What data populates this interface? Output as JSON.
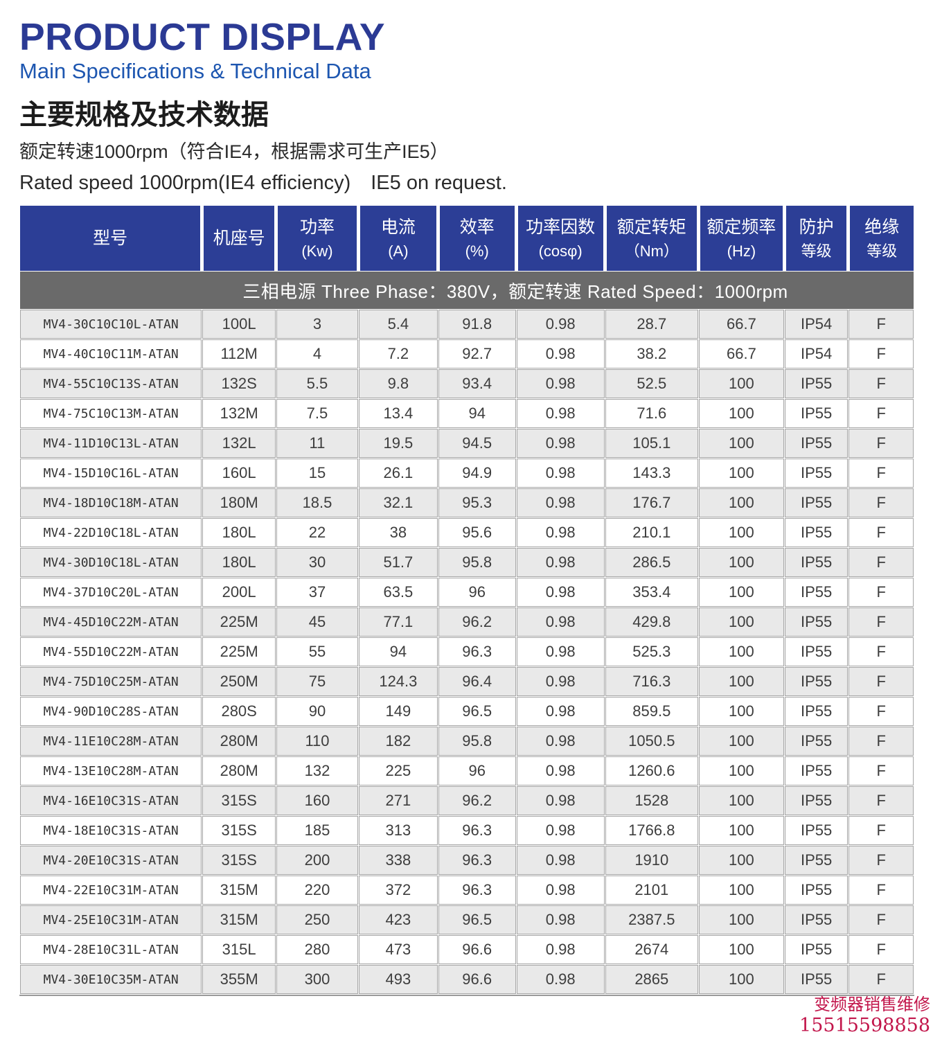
{
  "header": {
    "title": "PRODUCT DISPLAY",
    "subtitle": "Main Specifications & Technical Data",
    "heading_zh": "主要规格及技术数据",
    "rated_speed_zh": "额定转速1000rpm（符合IE4，根据需求可生产IE5）",
    "rated_speed_en": "Rated speed 1000rpm(IE4 efficiency)　IE5 on request."
  },
  "colors": {
    "title_blue": "#2b3a94",
    "subtitle_blue": "#1d56b0",
    "table_header_blue": "#2c3e96",
    "band_gray": "#6a6a6a",
    "row_stripe_gray": "#e9e9e9",
    "border_gray": "#a5a5a5",
    "watermark_red": "#c2164b"
  },
  "table": {
    "power_supply_banner": "三相电源 Three Phase：380V，额定转速 Rated Speed：1000rpm",
    "columns": [
      {
        "key": "model",
        "line1": "型号",
        "line2": ""
      },
      {
        "key": "frame-size",
        "line1": "机座号",
        "line2": ""
      },
      {
        "key": "power",
        "line1": "功率",
        "line2": "(Kw)"
      },
      {
        "key": "current",
        "line1": "电流",
        "line2": "(A)"
      },
      {
        "key": "efficiency",
        "line1": "效率",
        "line2": "(%)"
      },
      {
        "key": "power-factor",
        "line1": "功率因数",
        "line2": "(cosφ)"
      },
      {
        "key": "rated-torque",
        "line1": "额定转矩",
        "line2": "（Nm）"
      },
      {
        "key": "rated-frequency",
        "line1": "额定频率",
        "line2": "(Hz)"
      },
      {
        "key": "protection-class",
        "line1": "防护",
        "line2": "等级"
      },
      {
        "key": "insulation-class",
        "line1": "绝缘",
        "line2": "等级"
      }
    ],
    "rows": [
      [
        "MV4-30C10C10L-ATAN",
        "100L",
        "3",
        "5.4",
        "91.8",
        "0.98",
        "28.7",
        "66.7",
        "IP54",
        "F"
      ],
      [
        "MV4-40C10C11M-ATAN",
        "112M",
        "4",
        "7.2",
        "92.7",
        "0.98",
        "38.2",
        "66.7",
        "IP54",
        "F"
      ],
      [
        "MV4-55C10C13S-ATAN",
        "132S",
        "5.5",
        "9.8",
        "93.4",
        "0.98",
        "52.5",
        "100",
        "IP55",
        "F"
      ],
      [
        "MV4-75C10C13M-ATAN",
        "132M",
        "7.5",
        "13.4",
        "94",
        "0.98",
        "71.6",
        "100",
        "IP55",
        "F"
      ],
      [
        "MV4-11D10C13L-ATAN",
        "132L",
        "11",
        "19.5",
        "94.5",
        "0.98",
        "105.1",
        "100",
        "IP55",
        "F"
      ],
      [
        "MV4-15D10C16L-ATAN",
        "160L",
        "15",
        "26.1",
        "94.9",
        "0.98",
        "143.3",
        "100",
        "IP55",
        "F"
      ],
      [
        "MV4-18D10C18M-ATAN",
        "180M",
        "18.5",
        "32.1",
        "95.3",
        "0.98",
        "176.7",
        "100",
        "IP55",
        "F"
      ],
      [
        "MV4-22D10C18L-ATAN",
        "180L",
        "22",
        "38",
        "95.6",
        "0.98",
        "210.1",
        "100",
        "IP55",
        "F"
      ],
      [
        "MV4-30D10C18L-ATAN",
        "180L",
        "30",
        "51.7",
        "95.8",
        "0.98",
        "286.5",
        "100",
        "IP55",
        "F"
      ],
      [
        "MV4-37D10C20L-ATAN",
        "200L",
        "37",
        "63.5",
        "96",
        "0.98",
        "353.4",
        "100",
        "IP55",
        "F"
      ],
      [
        "MV4-45D10C22M-ATAN",
        "225M",
        "45",
        "77.1",
        "96.2",
        "0.98",
        "429.8",
        "100",
        "IP55",
        "F"
      ],
      [
        "MV4-55D10C22M-ATAN",
        "225M",
        "55",
        "94",
        "96.3",
        "0.98",
        "525.3",
        "100",
        "IP55",
        "F"
      ],
      [
        "MV4-75D10C25M-ATAN",
        "250M",
        "75",
        "124.3",
        "96.4",
        "0.98",
        "716.3",
        "100",
        "IP55",
        "F"
      ],
      [
        "MV4-90D10C28S-ATAN",
        "280S",
        "90",
        "149",
        "96.5",
        "0.98",
        "859.5",
        "100",
        "IP55",
        "F"
      ],
      [
        "MV4-11E10C28M-ATAN",
        "280M",
        "110",
        "182",
        "95.8",
        "0.98",
        "1050.5",
        "100",
        "IP55",
        "F"
      ],
      [
        "MV4-13E10C28M-ATAN",
        "280M",
        "132",
        "225",
        "96",
        "0.98",
        "1260.6",
        "100",
        "IP55",
        "F"
      ],
      [
        "MV4-16E10C31S-ATAN",
        "315S",
        "160",
        "271",
        "96.2",
        "0.98",
        "1528",
        "100",
        "IP55",
        "F"
      ],
      [
        "MV4-18E10C31S-ATAN",
        "315S",
        "185",
        "313",
        "96.3",
        "0.98",
        "1766.8",
        "100",
        "IP55",
        "F"
      ],
      [
        "MV4-20E10C31S-ATAN",
        "315S",
        "200",
        "338",
        "96.3",
        "0.98",
        "1910",
        "100",
        "IP55",
        "F"
      ],
      [
        "MV4-22E10C31M-ATAN",
        "315M",
        "220",
        "372",
        "96.3",
        "0.98",
        "2101",
        "100",
        "IP55",
        "F"
      ],
      [
        "MV4-25E10C31M-ATAN",
        "315M",
        "250",
        "423",
        "96.5",
        "0.98",
        "2387.5",
        "100",
        "IP55",
        "F"
      ],
      [
        "MV4-28E10C31L-ATAN",
        "315L",
        "280",
        "473",
        "96.6",
        "0.98",
        "2674",
        "100",
        "IP55",
        "F"
      ],
      [
        "MV4-30E10C35M-ATAN",
        "355M",
        "300",
        "493",
        "96.6",
        "0.98",
        "2865",
        "100",
        "IP55",
        "F"
      ]
    ]
  },
  "watermark": {
    "line1": "变频器销售维修",
    "line2": "15515598858"
  }
}
